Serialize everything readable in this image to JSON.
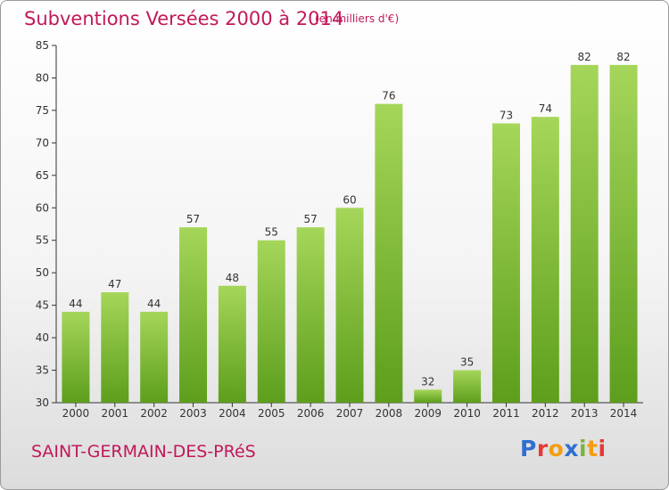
{
  "header": {
    "title": "Subventions Versées 2000 à 2014",
    "unit": "(en milliers d'€)"
  },
  "footer": {
    "commune": "SAINT-GERMAIN-DES-PRéS",
    "brand": "Proxiti"
  },
  "colors": {
    "bar_light": "#a5d65a",
    "bar_dark": "#5d9e1c",
    "text_accent": "#c2185b",
    "axis": "#333333"
  },
  "chart_data": {
    "type": "bar",
    "title": "Subventions Versées 2000 à 2014",
    "subtitle": "(en milliers d'€)",
    "xlabel": "",
    "ylabel": "",
    "categories": [
      "2000",
      "2001",
      "2002",
      "2003",
      "2004",
      "2005",
      "2006",
      "2007",
      "2008",
      "2009",
      "2010",
      "2011",
      "2012",
      "2013",
      "2014"
    ],
    "values": [
      44,
      47,
      44,
      57,
      48,
      55,
      57,
      60,
      76,
      32,
      35,
      73,
      74,
      82,
      82
    ],
    "ylim": [
      30,
      85
    ],
    "yticks": [
      30,
      35,
      40,
      45,
      50,
      55,
      60,
      65,
      70,
      75,
      80,
      85
    ],
    "grid": false,
    "data_labels": true
  }
}
